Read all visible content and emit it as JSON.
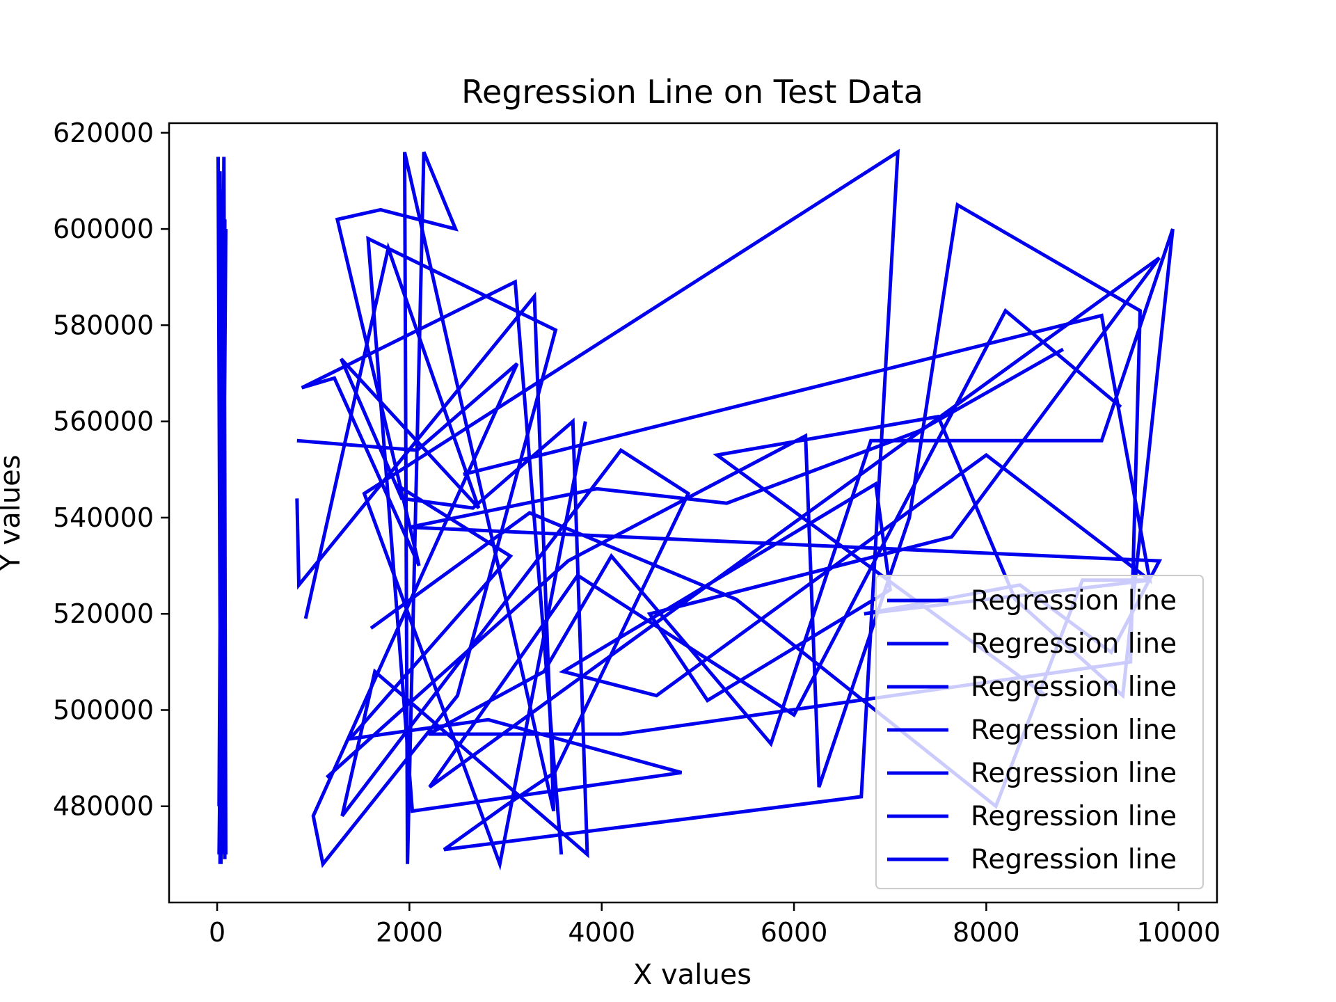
{
  "chart_data": {
    "type": "line",
    "title": "Regression Line on Test Data",
    "xlabel": "X values",
    "ylabel": "Y values",
    "xlim": [
      -500,
      10400
    ],
    "ylim": [
      460000,
      622000
    ],
    "x_ticks": [
      0,
      2000,
      4000,
      6000,
      8000,
      10000
    ],
    "x_tick_labels": [
      "0",
      "2000",
      "4000",
      "6000",
      "8000",
      "10000"
    ],
    "y_ticks": [
      480000,
      500000,
      520000,
      540000,
      560000,
      580000,
      600000,
      620000
    ],
    "y_tick_labels": [
      "480000",
      "500000",
      "520000",
      "540000",
      "560000",
      "580000",
      "600000",
      "620000"
    ],
    "grid": false,
    "legend_position": "lower-right",
    "line_color": "#0000ee",
    "series": [
      {
        "name": "Regression line",
        "x": [
          10,
          40,
          20,
          60,
          30,
          80,
          50,
          20,
          70,
          90,
          40,
          60,
          80,
          30,
          70,
          50,
          90,
          20
        ],
        "y": [
          615000,
          468000,
          600000,
          470000,
          612000,
          469000,
          590000,
          480000,
          615000,
          470000,
          600000,
          475000,
          602000,
          468000,
          560000,
          490000,
          600000,
          470000
        ]
      },
      {
        "name": "Regression line",
        "x": [
          830,
          850,
          3300,
          3500,
          1950,
          1980,
          2150,
          2480,
          1700,
          1250,
          2100,
          1220,
          880,
          3100,
          3580
        ],
        "y": [
          544000,
          526000,
          586000,
          479000,
          616000,
          468000,
          616000,
          600000,
          604000,
          602000,
          530000,
          569000,
          567000,
          589000,
          470000
        ]
      },
      {
        "name": "Regression line",
        "x": [
          830,
          2080,
          3120,
          1000,
          1100,
          2500,
          3520,
          1570,
          2030,
          4830,
          2820,
          1380,
          3050,
          1850
        ],
        "y": [
          556000,
          554000,
          572000,
          478000,
          468000,
          503000,
          579000,
          598000,
          479000,
          487000,
          498000,
          494000,
          532000,
          547000
        ]
      },
      {
        "name": "Regression line",
        "x": [
          920,
          1780,
          2720,
          1290,
          1920,
          2660,
          3700,
          3850,
          1640,
          1300,
          4200,
          4900,
          3510,
          2990,
          2360,
          6700,
          7080,
          1530,
          2940,
          3830
        ],
        "y": [
          519000,
          596000,
          542000,
          573000,
          544000,
          542000,
          560000,
          470000,
          508000,
          478000,
          554000,
          545000,
          487000,
          480000,
          471000,
          482000,
          616000,
          545000,
          468000,
          560000
        ]
      },
      {
        "name": "Regression line",
        "x": [
          1140,
          3650,
          6120,
          6260,
          7200,
          7700,
          9600,
          9500,
          4200,
          2200,
          3400,
          4100,
          5760,
          6800,
          9200,
          9940,
          9420,
          8300,
          7500,
          5200,
          8620
        ],
        "y": [
          486000,
          531000,
          557000,
          484000,
          540000,
          605000,
          583000,
          510000,
          495000,
          495000,
          508000,
          532000,
          493000,
          556000,
          556000,
          600000,
          503000,
          523000,
          561000,
          553000,
          503000
        ]
      },
      {
        "name": "Regression line",
        "x": [
          2560,
          9200,
          9700,
          8000,
          4570,
          3600,
          6850,
          7000,
          5100,
          4500,
          7640,
          9800,
          2210,
          3750,
          6000,
          8200,
          9400
        ],
        "y": [
          549000,
          582000,
          527000,
          553000,
          503000,
          508000,
          547000,
          525000,
          502000,
          520000,
          536000,
          594000,
          484000,
          528000,
          499000,
          583000,
          563000
        ]
      },
      {
        "name": "Regression line",
        "x": [
          1600,
          3250,
          5400,
          8100,
          9000,
          9700,
          6730,
          8350,
          9300,
          9800,
          2000,
          3950,
          5300,
          7300,
          8800
        ],
        "y": [
          517000,
          541000,
          523000,
          480000,
          527000,
          527000,
          520000,
          526000,
          512000,
          531000,
          538000,
          546000,
          543000,
          558000,
          575000
        ]
      }
    ]
  }
}
